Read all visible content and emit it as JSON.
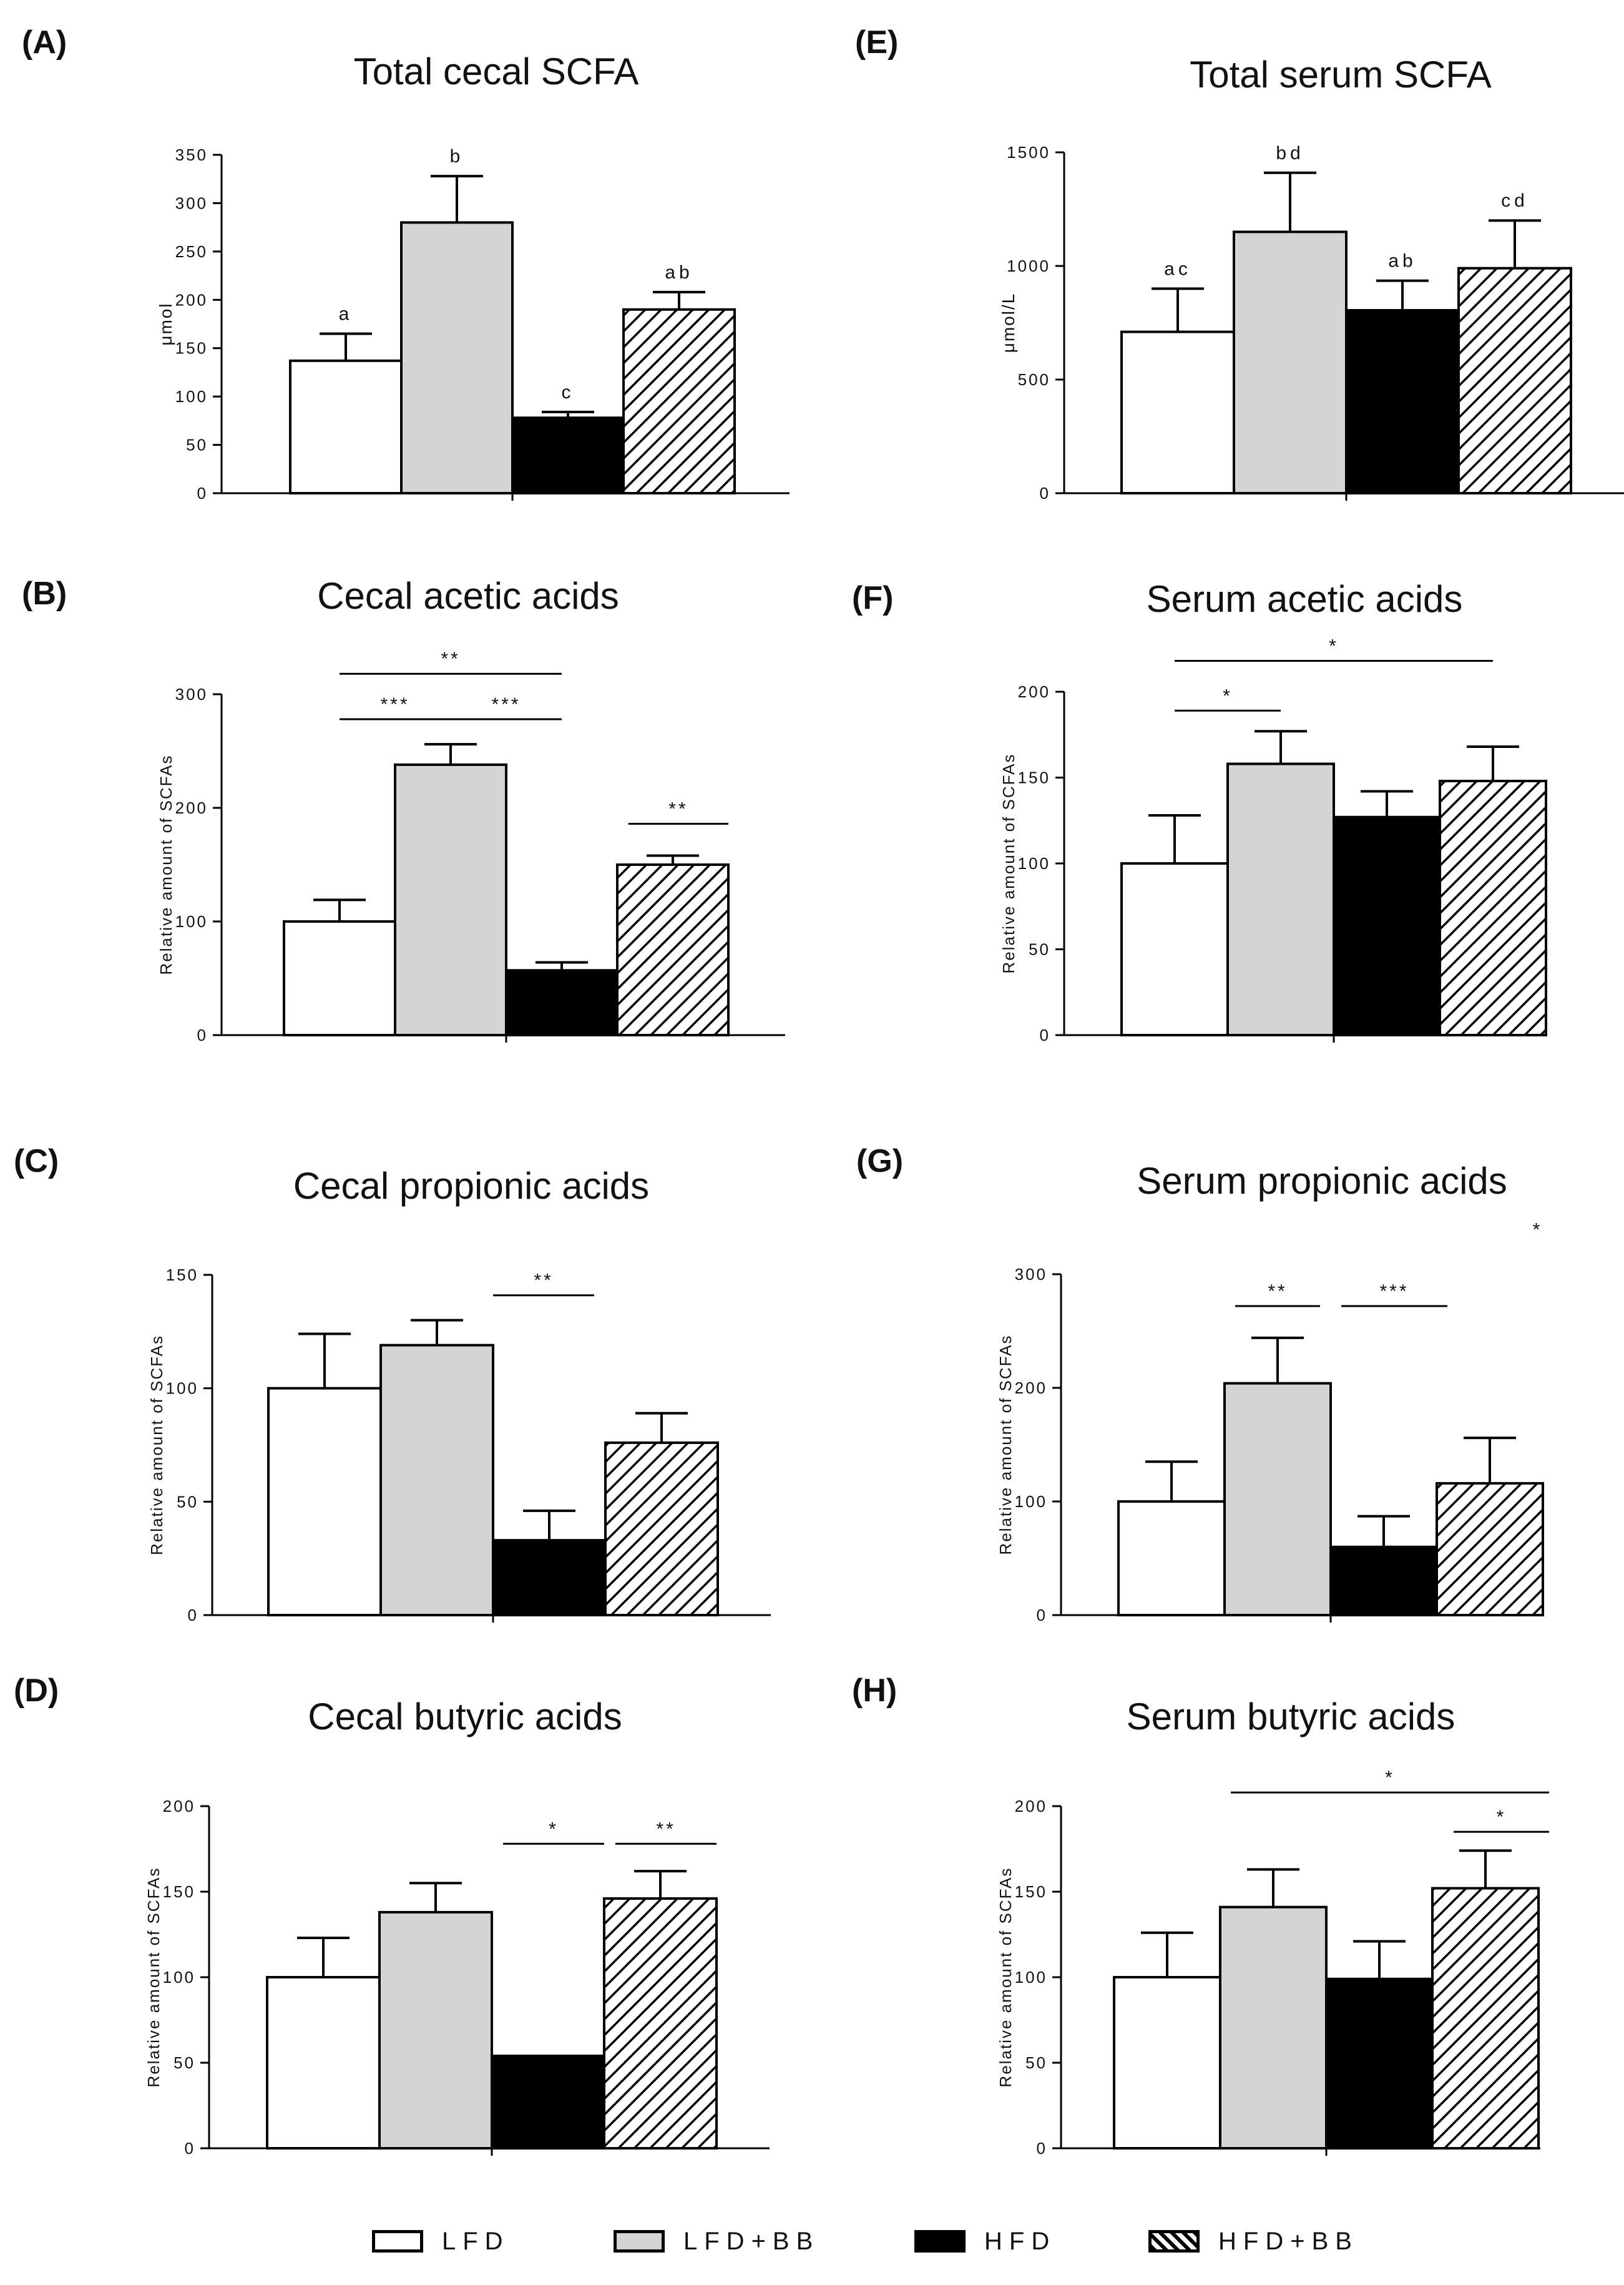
{
  "groups": [
    "LFD",
    "LFD+BB",
    "HFD",
    "HFD+BB"
  ],
  "colors": {
    "LFD": "#ffffff",
    "LFD+BB": "#d4d4d4",
    "HFD": "#000000",
    "HFD+BB": "hatch",
    "stroke": "#000000"
  },
  "legend": {
    "items": [
      {
        "label": "LFD",
        "fill": "white"
      },
      {
        "label": "LFD+BB",
        "fill": "gray"
      },
      {
        "label": "HFD",
        "fill": "black"
      },
      {
        "label": "HFD+BB",
        "fill": "hatch"
      }
    ]
  },
  "chart_data": [
    {
      "id": "A",
      "panel_label": "(A)",
      "type": "bar",
      "title": "Total cecal SCFA",
      "ylabel": "μmol",
      "ylim": [
        0,
        350
      ],
      "yticks": [
        0,
        50,
        100,
        150,
        200,
        250,
        300,
        350
      ],
      "categories": [
        "LFD",
        "LFD+BB",
        "HFD",
        "HFD+BB"
      ],
      "values": [
        137,
        280,
        78,
        190
      ],
      "errors": [
        28,
        48,
        6,
        18
      ],
      "letters": [
        "a",
        "b",
        "c",
        "ab"
      ],
      "significance": []
    },
    {
      "id": "B",
      "panel_label": "(B)",
      "type": "bar",
      "title": "Cecal acetic acids",
      "ylabel": "Relative amount of SCFAs",
      "ylim": [
        0,
        300
      ],
      "yticks": [
        0,
        100,
        200,
        300
      ],
      "categories": [
        "LFD",
        "LFD+BB",
        "HFD",
        "HFD+BB"
      ],
      "values": [
        100,
        238,
        57,
        150
      ],
      "errors": [
        19,
        18,
        7,
        8
      ],
      "letters": [],
      "significance": [
        {
          "from": 0,
          "to": 2,
          "label": "**",
          "y": 318
        },
        {
          "from": 0,
          "to": 1,
          "label": "***",
          "y": 278
        },
        {
          "from": 1,
          "to": 2,
          "label": "***",
          "y": 278
        },
        {
          "from": 2.6,
          "to": 3.5,
          "label": "**",
          "y": 186
        }
      ]
    },
    {
      "id": "C",
      "panel_label": "(C)",
      "type": "bar",
      "title": "Cecal propionic acids",
      "ylabel": "Relative amount of SCFAs",
      "ylim": [
        0,
        150
      ],
      "yticks": [
        0,
        50,
        100,
        150
      ],
      "categories": [
        "LFD",
        "LFD+BB",
        "HFD",
        "HFD+BB"
      ],
      "values": [
        100,
        119,
        33,
        76
      ],
      "errors": [
        24,
        11,
        13,
        13
      ],
      "letters": [],
      "significance": [
        {
          "from": 1.5,
          "to": 2.4,
          "label": "**",
          "y": 141
        }
      ]
    },
    {
      "id": "D",
      "panel_label": "(D)",
      "type": "bar",
      "title": "Cecal butyric acids",
      "ylabel": "Relative amount of SCFAs",
      "ylim": [
        0,
        200
      ],
      "yticks": [
        0,
        50,
        100,
        150,
        200
      ],
      "categories": [
        "LFD",
        "LFD+BB",
        "HFD",
        "HFD+BB"
      ],
      "values": [
        100,
        138,
        54,
        146
      ],
      "errors": [
        23,
        17,
        0,
        16
      ],
      "letters": [],
      "significance": [
        {
          "from": 1.6,
          "to": 2.5,
          "label": "*",
          "y": 178
        },
        {
          "from": 2.6,
          "to": 3.5,
          "label": "**",
          "y": 178
        }
      ]
    },
    {
      "id": "E",
      "panel_label": "(E)",
      "type": "bar",
      "title": "Total serum SCFA",
      "ylabel": "μmol/L",
      "ylim": [
        0,
        1500
      ],
      "yticks": [
        0,
        500,
        1000,
        1500
      ],
      "categories": [
        "LFD",
        "LFD+BB",
        "HFD",
        "HFD+BB"
      ],
      "values": [
        710,
        1150,
        805,
        990
      ],
      "errors": [
        190,
        260,
        130,
        210
      ],
      "letters": [
        "ac",
        "bd",
        "ab",
        "cd"
      ],
      "significance": []
    },
    {
      "id": "F",
      "panel_label": "(F)",
      "type": "bar",
      "title": "Serum acetic acids",
      "ylabel": "Relative amount of SCFAs",
      "ylim": [
        0,
        200
      ],
      "yticks": [
        0,
        50,
        100,
        150,
        200
      ],
      "categories": [
        "LFD",
        "LFD+BB",
        "HFD",
        "HFD+BB"
      ],
      "values": [
        100,
        158,
        127,
        148
      ],
      "errors": [
        28,
        19,
        15,
        20
      ],
      "letters": [],
      "significance": [
        {
          "from": 0,
          "to": 3,
          "label": "*",
          "y": 218
        },
        {
          "from": 0,
          "to": 1,
          "label": "*",
          "y": 189
        }
      ]
    },
    {
      "id": "G",
      "panel_label": "(G)",
      "type": "bar",
      "title": "Serum propionic acids",
      "ylabel": "Relative amount of SCFAs",
      "ylim": [
        0,
        300
      ],
      "yticks": [
        0,
        100,
        200,
        300
      ],
      "categories": [
        "LFD",
        "LFD+BB",
        "HFD",
        "HFD+BB"
      ],
      "values": [
        100,
        204,
        60,
        116
      ],
      "errors": [
        35,
        40,
        27,
        40
      ],
      "letters": [],
      "significance": [
        {
          "from": 0.6,
          "to": 1.4,
          "label": "**",
          "y": 272
        },
        {
          "from": 1.6,
          "to": 2.6,
          "label": "***",
          "y": 272
        },
        {
          "from": 3.45,
          "to": 3.45,
          "label": "*",
          "y": 326
        }
      ]
    },
    {
      "id": "H",
      "panel_label": "(H)",
      "type": "bar",
      "title": "Serum butyric acids",
      "ylabel": "Relative amount of SCFAs",
      "ylim": [
        0,
        200
      ],
      "yticks": [
        0,
        50,
        100,
        150,
        200
      ],
      "categories": [
        "LFD",
        "LFD+BB",
        "HFD",
        "HFD+BB"
      ],
      "values": [
        100,
        141,
        99,
        152
      ],
      "errors": [
        26,
        22,
        22,
        22
      ],
      "letters": [],
      "significance": [
        {
          "from": 0.6,
          "to": 3.6,
          "label": "*",
          "y": 208
        },
        {
          "from": 2.7,
          "to": 3.6,
          "label": "*",
          "y": 185
        }
      ]
    }
  ]
}
